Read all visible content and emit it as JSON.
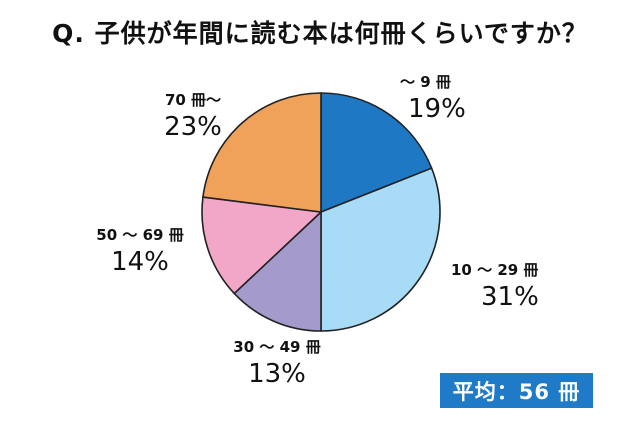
{
  "title": "Q. 子供が年間に読む本は何冊くらいですか？",
  "average_label": "平均：56 冊",
  "chart_data": {
    "type": "pie",
    "title": "Q. 子供が年間に読む本は何冊くらいですか？",
    "start": "12 o'clock, clockwise",
    "slices": [
      {
        "label": "～ 9 冊",
        "value": 19,
        "display": "19%",
        "color": "#1f78c4"
      },
      {
        "label": "10 ～ 29 冊",
        "value": 31,
        "display": "31%",
        "color": "#a8dbf6"
      },
      {
        "label": "30 ～ 49 冊",
        "value": 13,
        "display": "13%",
        "color": "#a49acb"
      },
      {
        "label": "50 ～ 69 冊",
        "value": 14,
        "display": "14%",
        "color": "#f2a6c8"
      },
      {
        "label": "70 冊～",
        "value": 23,
        "display": "23%",
        "color": "#f0a25a"
      }
    ]
  }
}
